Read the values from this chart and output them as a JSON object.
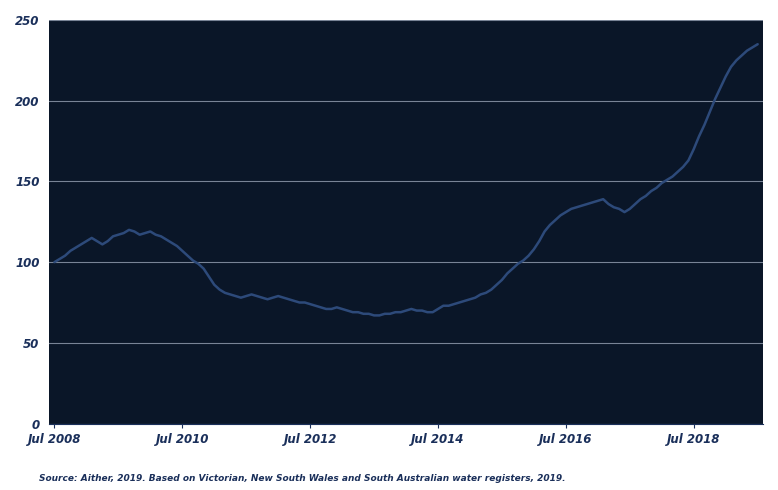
{
  "source_text": "Source: Aither, 2019. Based on Victorian, New South Wales and South Australian water registers, 2019.",
  "line_color": "#1a2f5a",
  "background_color": "#ffffff",
  "plot_bg_color": "#0a1628",
  "grid_color": "#c5cfe0",
  "tick_color": "#1a2f5a",
  "ylabel": "",
  "xlabel": "",
  "yticks": [
    0,
    50,
    100,
    150,
    200,
    250
  ],
  "xtick_labels": [
    "Jul 2008",
    "Jul 2010",
    "Jul 2012",
    "Jul 2014",
    "Jul 2016",
    "Jul 2018"
  ],
  "xtick_positions": [
    0,
    24,
    48,
    72,
    96,
    120
  ],
  "ylim": [
    0,
    250
  ],
  "xlim": [
    -1,
    133
  ],
  "data_x": [
    0,
    1,
    2,
    3,
    4,
    5,
    6,
    7,
    8,
    9,
    10,
    11,
    12,
    13,
    14,
    15,
    16,
    17,
    18,
    19,
    20,
    21,
    22,
    23,
    24,
    25,
    26,
    27,
    28,
    29,
    30,
    31,
    32,
    33,
    34,
    35,
    36,
    37,
    38,
    39,
    40,
    41,
    42,
    43,
    44,
    45,
    46,
    47,
    48,
    49,
    50,
    51,
    52,
    53,
    54,
    55,
    56,
    57,
    58,
    59,
    60,
    61,
    62,
    63,
    64,
    65,
    66,
    67,
    68,
    69,
    70,
    71,
    72,
    73,
    74,
    75,
    76,
    77,
    78,
    79,
    80,
    81,
    82,
    83,
    84,
    85,
    86,
    87,
    88,
    89,
    90,
    91,
    92,
    93,
    94,
    95,
    96,
    97,
    98,
    99,
    100,
    101,
    102,
    103,
    104,
    105,
    106,
    107,
    108,
    109,
    110,
    111,
    112,
    113,
    114,
    115,
    116,
    117,
    118,
    119,
    120,
    121,
    122,
    123,
    124,
    125,
    126,
    127,
    128,
    129,
    130,
    131,
    132
  ],
  "data_y": [
    100,
    102,
    104,
    107,
    109,
    111,
    113,
    115,
    113,
    111,
    113,
    116,
    117,
    118,
    120,
    119,
    117,
    118,
    119,
    117,
    116,
    114,
    112,
    110,
    107,
    104,
    101,
    99,
    96,
    91,
    86,
    83,
    81,
    80,
    79,
    78,
    79,
    80,
    79,
    78,
    77,
    78,
    79,
    78,
    77,
    76,
    75,
    75,
    74,
    73,
    72,
    71,
    71,
    72,
    71,
    70,
    69,
    69,
    68,
    68,
    67,
    67,
    68,
    68,
    69,
    69,
    70,
    71,
    70,
    70,
    69,
    69,
    71,
    73,
    73,
    74,
    75,
    76,
    77,
    78,
    80,
    81,
    83,
    86,
    89,
    93,
    96,
    99,
    101,
    104,
    108,
    113,
    119,
    123,
    126,
    129,
    131,
    133,
    134,
    135,
    136,
    137,
    138,
    139,
    136,
    134,
    133,
    131,
    133,
    136,
    139,
    141,
    144,
    146,
    149,
    151,
    153,
    156,
    159,
    163,
    170,
    178,
    185,
    193,
    201,
    208,
    215,
    221,
    225,
    228,
    231,
    233,
    235
  ],
  "label_fontsize": 8.5,
  "source_fontsize": 6.5
}
